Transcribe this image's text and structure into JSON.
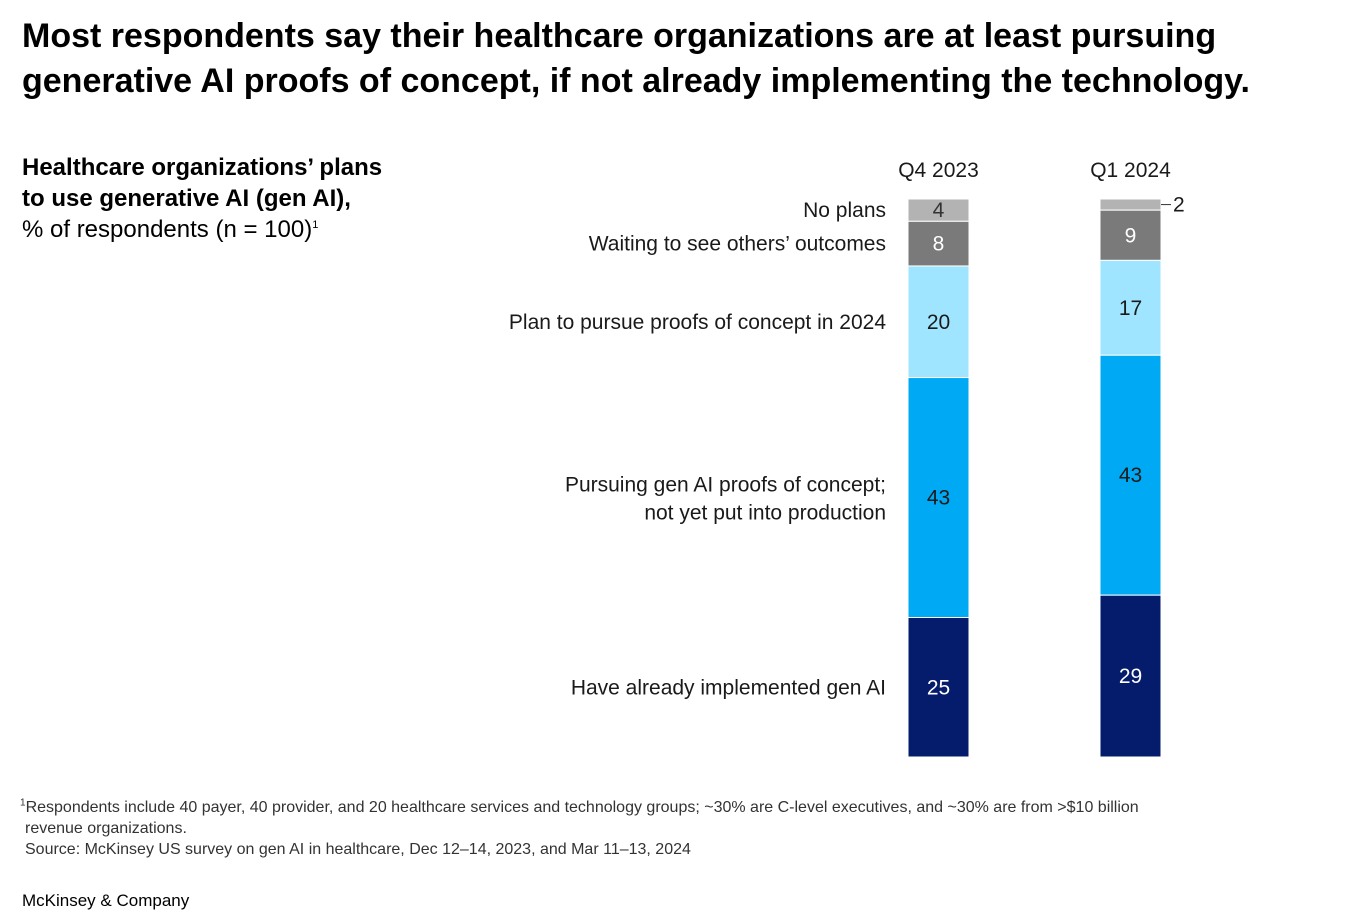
{
  "headline": "Most respondents say their healthcare organizations are at least pursuing generative AI proofs of concept, if not already implementing the technology.",
  "subtitle": {
    "bold_line1": "Healthcare organizations’ plans",
    "bold_line2": "to use generative AI (gen AI),",
    "regular": "% of respondents (n = 100)",
    "footnote_mark": "1"
  },
  "chart_data": {
    "type": "bar",
    "stacked": true,
    "orientation": "vertical",
    "categories": [
      "Q4 2023",
      "Q1 2024"
    ],
    "segments": [
      {
        "name": "No plans",
        "values": [
          4,
          2
        ],
        "color": "#b3b3b3",
        "label_color": "#333333"
      },
      {
        "name": "Waiting to see others’ outcomes",
        "values": [
          8,
          9
        ],
        "color": "#7a7a7a",
        "label_color": "#ffffff"
      },
      {
        "name": "Plan to pursue proofs of concept in 2024",
        "values": [
          20,
          17
        ],
        "color": "#9fe5ff",
        "label_color": "#1a1a1a"
      },
      {
        "name": "Pursuing gen AI proofs of concept; not yet put into production",
        "values": [
          43,
          43
        ],
        "color": "#00a9f4",
        "label_color": "#1a1a1a"
      },
      {
        "name": "Have already implemented gen AI",
        "values": [
          25,
          29
        ],
        "color": "#051c6d",
        "label_color": "#ffffff"
      }
    ],
    "ylim": [
      0,
      100
    ],
    "grid": false,
    "legend": "left"
  },
  "footnotes": {
    "mark": "1",
    "note_line1": "Respondents include 40 payer, 40 provider, and 20 healthcare services and technology groups; ~30% are C-level executives, and ~30% are from >$10 billion",
    "note_line2": "revenue organizations.",
    "source": "Source: McKinsey US survey on gen AI in healthcare, Dec 12–14, 2023, and Mar 11–13, 2024"
  },
  "brand": "McKinsey & Company"
}
